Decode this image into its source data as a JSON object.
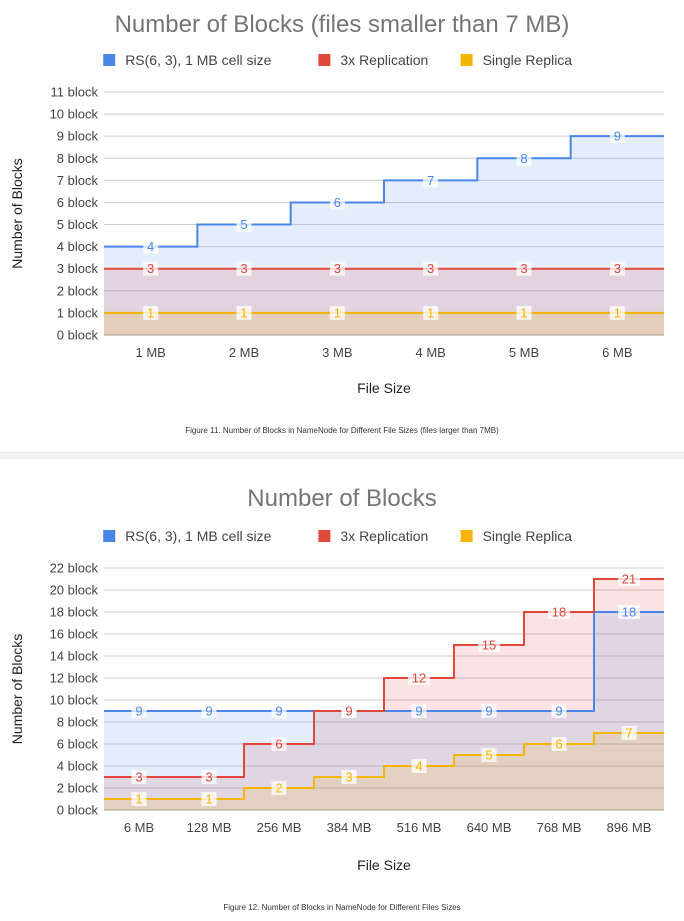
{
  "chart_data": [
    {
      "type": "line",
      "title": "Number of Blocks (files smaller than 7 MB)",
      "xlabel": "File Size",
      "ylabel": "Number of Blocks",
      "categories": [
        "1 MB",
        "2 MB",
        "3 MB",
        "4 MB",
        "5 MB",
        "6 MB"
      ],
      "ylim": [
        0,
        11
      ],
      "yticks": [
        "0 block",
        "1 block",
        "2 block",
        "3 block",
        "4 block",
        "5 block",
        "6 block",
        "7 block",
        "8 block",
        "9 block",
        "10 block",
        "11 block"
      ],
      "legend_position": "top",
      "grid": true,
      "series": [
        {
          "name": "RS(6, 3), 1 MB cell size",
          "color": "#4a86e8",
          "fill": "#e3ebf9",
          "values": [
            4,
            5,
            6,
            7,
            8,
            9
          ]
        },
        {
          "name": "3x Replication",
          "color": "#e0463a",
          "fill": "#e9dbe7",
          "values": [
            3,
            3,
            3,
            3,
            3,
            3
          ]
        },
        {
          "name": "Single Replica",
          "color": "#f5b400",
          "fill": "#e9cd98",
          "values": [
            1,
            1,
            1,
            1,
            1,
            1
          ]
        }
      ]
    },
    {
      "type": "line",
      "title": "Number of Blocks",
      "xlabel": "File Size",
      "ylabel": "Number of Blocks",
      "categories": [
        "6 MB",
        "128 MB",
        "256 MB",
        "384 MB",
        "516 MB",
        "640 MB",
        "768 MB",
        "896 MB"
      ],
      "ylim": [
        0,
        22
      ],
      "yticks": [
        "0 block",
        "2 block",
        "4 block",
        "6 block",
        "8 block",
        "10 block",
        "12 block",
        "14 block",
        "16 block",
        "18 block",
        "20 block",
        "22 block"
      ],
      "legend_position": "top",
      "grid": true,
      "series": [
        {
          "name": "RS(6, 3), 1 MB cell size",
          "color": "#4a86e8",
          "fill": "#e3ebf9",
          "values": [
            9,
            9,
            9,
            9,
            9,
            9,
            9,
            18
          ]
        },
        {
          "name": "3x Replication",
          "color": "#e0463a",
          "fill": "#e9dbe7",
          "values": [
            3,
            3,
            6,
            9,
            12,
            15,
            18,
            21
          ]
        },
        {
          "name": "Single Replica",
          "color": "#f5b400",
          "fill": "#e9cd98",
          "values": [
            1,
            1,
            2,
            3,
            4,
            5,
            6,
            7
          ]
        }
      ]
    }
  ],
  "captions": {
    "figure11": "Figure 11. Number of Blocks in NameNode for Different File Sizes (files larger than 7MB)",
    "figure12": "Figure 12. Number of Blocks in NameNode for Different Files Sizes"
  }
}
